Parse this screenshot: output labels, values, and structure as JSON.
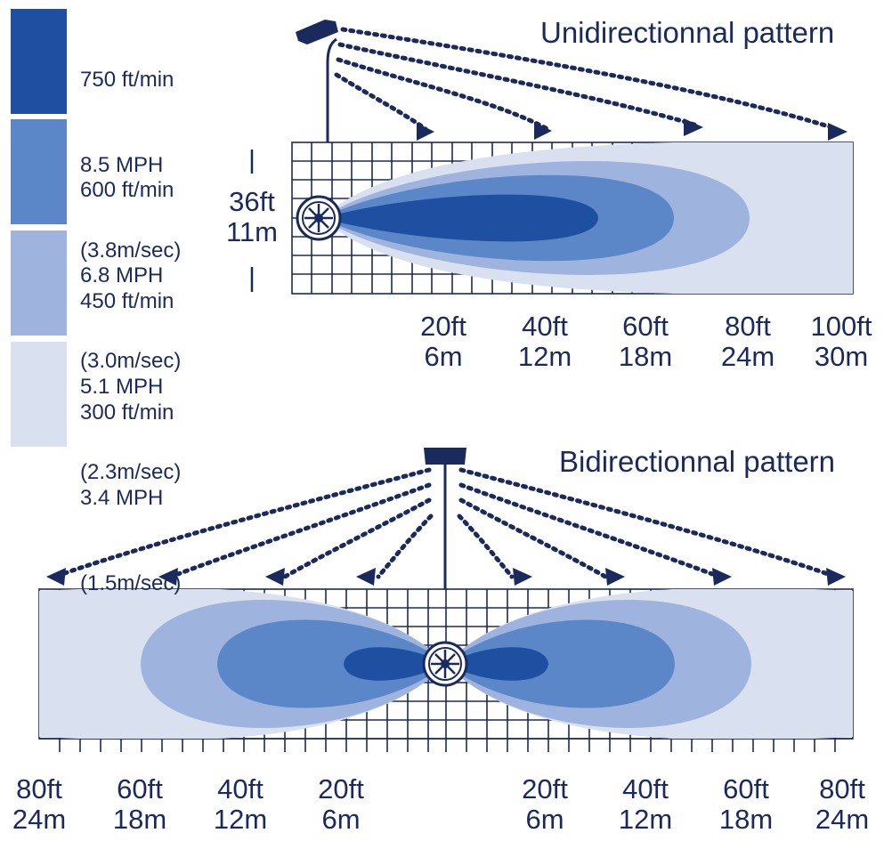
{
  "legend": [
    {
      "speed": "750 ft/min",
      "mph": "8.5 MPH",
      "ms": "(3.8m/sec)",
      "color": "#1f4fa0"
    },
    {
      "speed": "600 ft/min",
      "mph": "6.8 MPH",
      "ms": "(3.0m/sec)",
      "color": "#5b86c7"
    },
    {
      "speed": "450 ft/min",
      "mph": "5.1 MPH",
      "ms": "(2.3m/sec)",
      "color": "#9eb3dd"
    },
    {
      "speed": "300 ft/min",
      "mph": "3.4 MPH",
      "ms": "(1.5m/sec)",
      "color": "#d9e0ef"
    }
  ],
  "unidirectional": {
    "title": "Unidirectionnal pattern",
    "side_label": {
      "ft": "36ft",
      "m": "11m"
    },
    "distance_labels": [
      {
        "ft": "20ft",
        "m": "6m"
      },
      {
        "ft": "40ft",
        "m": "12m"
      },
      {
        "ft": "60ft",
        "m": "18m"
      },
      {
        "ft": "80ft",
        "m": "24m"
      },
      {
        "ft": "100ft",
        "m": "30m"
      }
    ]
  },
  "bidirectional": {
    "title": "Bidirectionnal pattern",
    "left_labels": [
      {
        "ft": "80ft",
        "m": "24m"
      },
      {
        "ft": "60ft",
        "m": "18m"
      },
      {
        "ft": "40ft",
        "m": "12m"
      },
      {
        "ft": "20ft",
        "m": "6m"
      }
    ],
    "right_labels": [
      {
        "ft": "20ft",
        "m": "6m"
      },
      {
        "ft": "40ft",
        "m": "12m"
      },
      {
        "ft": "60ft",
        "m": "18m"
      },
      {
        "ft": "80ft",
        "m": "24m"
      }
    ]
  },
  "colors": {
    "ink": "#1b2a5c",
    "grid": "#1b2a5c"
  }
}
